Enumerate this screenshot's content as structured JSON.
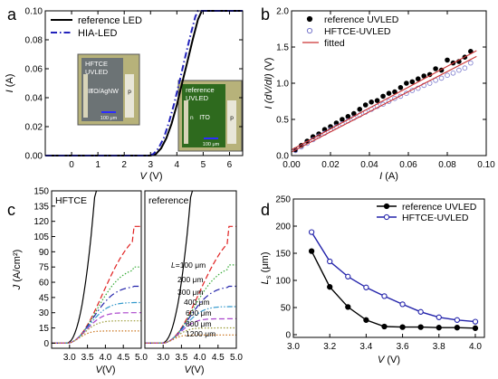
{
  "panel_labels": [
    "a",
    "b",
    "c",
    "d"
  ],
  "chart_data": [
    {
      "id": "a",
      "type": "line",
      "xlabel": "V",
      "xunit": " (V)",
      "ylabel": "I",
      "yunit": " (A)",
      "xlim": [
        -1,
        6.5
      ],
      "ylim": [
        0,
        0.1
      ],
      "xticks": [
        0,
        1,
        2,
        3,
        4,
        5,
        6
      ],
      "yticks": [
        0.0,
        0.02,
        0.04,
        0.06,
        0.08,
        0.1
      ],
      "series": [
        {
          "name": "reference LED",
          "color": "#000000",
          "style": "solid",
          "x": [
            -1,
            3.0,
            3.2,
            3.4,
            3.6,
            3.8,
            4.0,
            4.2,
            4.4,
            4.6,
            4.8,
            4.95,
            6.5
          ],
          "y": [
            0,
            0,
            0.001,
            0.005,
            0.012,
            0.022,
            0.035,
            0.05,
            0.065,
            0.08,
            0.094,
            0.1,
            0.1
          ]
        },
        {
          "name": "HIA-LED",
          "color": "#2222bb",
          "style": "dashdot",
          "x": [
            -1,
            2.9,
            3.1,
            3.3,
            3.5,
            3.7,
            3.9,
            4.1,
            4.3,
            4.5,
            4.7,
            4.8,
            6.5
          ],
          "y": [
            0,
            0,
            0.001,
            0.005,
            0.012,
            0.023,
            0.036,
            0.051,
            0.067,
            0.082,
            0.096,
            0.1,
            0.1
          ]
        }
      ],
      "insets": [
        {
          "title": [
            "HFTCE",
            "UVLED"
          ],
          "center": "ITO/AgNW",
          "left": "n",
          "right": "p",
          "scale": "100 μm",
          "color": "#6c7375"
        },
        {
          "title": [
            "reference",
            "UVLED"
          ],
          "center": "ITO",
          "left": "n",
          "right": "p",
          "scale": "100 μm",
          "color": "#2e6a1e"
        }
      ]
    },
    {
      "id": "b",
      "type": "scatter",
      "xlabel": "I",
      "xunit": " (A)",
      "ylabel": "I (dV/dI)",
      "yunit": " (V)",
      "xlim": [
        0,
        0.1
      ],
      "ylim": [
        0,
        2.0
      ],
      "xticks": [
        0.0,
        0.02,
        0.04,
        0.06,
        0.08,
        0.1
      ],
      "yticks": [
        0.0,
        0.5,
        1.0,
        1.5,
        2.0
      ],
      "series": [
        {
          "name": "reference UVLED",
          "marker": "filled-circle",
          "color": "#000000",
          "x": [
            0.002,
            0.005,
            0.008,
            0.011,
            0.014,
            0.017,
            0.02,
            0.023,
            0.026,
            0.029,
            0.032,
            0.035,
            0.038,
            0.041,
            0.044,
            0.047,
            0.05,
            0.053,
            0.056,
            0.059,
            0.062,
            0.065,
            0.068,
            0.071,
            0.074,
            0.077,
            0.08,
            0.083,
            0.086,
            0.089,
            0.092
          ],
          "y": [
            0.08,
            0.14,
            0.2,
            0.26,
            0.3,
            0.36,
            0.4,
            0.45,
            0.5,
            0.54,
            0.58,
            0.64,
            0.7,
            0.74,
            0.76,
            0.82,
            0.86,
            0.88,
            0.94,
            1.0,
            1.02,
            1.06,
            1.1,
            1.12,
            1.2,
            1.18,
            1.32,
            1.28,
            1.3,
            1.36,
            1.44
          ]
        },
        {
          "name": "HFTCE-UVLED",
          "marker": "open-circle",
          "color": "#7777cc",
          "x": [
            0.002,
            0.005,
            0.008,
            0.011,
            0.014,
            0.017,
            0.02,
            0.023,
            0.026,
            0.029,
            0.032,
            0.035,
            0.038,
            0.041,
            0.044,
            0.047,
            0.05,
            0.053,
            0.056,
            0.059,
            0.062,
            0.065,
            0.068,
            0.071,
            0.074,
            0.077,
            0.08,
            0.083,
            0.086,
            0.089,
            0.092
          ],
          "y": [
            0.07,
            0.12,
            0.17,
            0.22,
            0.27,
            0.31,
            0.36,
            0.4,
            0.44,
            0.48,
            0.52,
            0.56,
            0.6,
            0.64,
            0.68,
            0.71,
            0.75,
            0.79,
            0.82,
            0.86,
            0.9,
            0.93,
            0.97,
            1.0,
            1.04,
            1.07,
            1.11,
            1.14,
            1.18,
            1.21,
            1.28
          ]
        },
        {
          "name": "fitted",
          "color": "#cc3333",
          "style": "solid",
          "x": [
            0,
            0.095
          ],
          "y": [
            0.08,
            1.45
          ]
        },
        {
          "name": "",
          "color": "#cc3333",
          "style": "solid",
          "legend": false,
          "x": [
            0,
            0.095
          ],
          "y": [
            0.05,
            1.37
          ]
        }
      ]
    },
    {
      "id": "c",
      "type": "line",
      "ylabel": "J",
      "yunit": " (A/cm²)",
      "xlabel": "V",
      "xunit": "(V)",
      "ylim": [
        -5,
        150
      ],
      "yticks": [
        0,
        15,
        30,
        45,
        60,
        75,
        90,
        105,
        120,
        135,
        150
      ],
      "subpanels": [
        {
          "label": "HFTCE",
          "xlim": [
            2.5,
            5.0
          ],
          "xticks": [
            3.0,
            3.5,
            4.0,
            4.5,
            5.0
          ]
        },
        {
          "label": "reference",
          "xlim": [
            2.5,
            5.0
          ],
          "xticks": [
            3.0,
            3.5,
            4.0,
            4.5,
            5.0
          ]
        }
      ],
      "annotations": [
        "L=100 μm",
        "200 μm",
        "300 μm",
        "400 μm",
        "600 μm",
        "800 μm",
        "1200 μm"
      ],
      "series": [
        {
          "name": "",
          "color": "#000000",
          "style": "solid",
          "Jmax_hftce": 150,
          "Jmax_ref": 150,
          "sat": false,
          "k": 2.4
        },
        {
          "name": "100 μm",
          "color": "#e02020",
          "style": "dash",
          "Jmax_hftce": 115,
          "Jmax_ref": 115,
          "sat": true
        },
        {
          "name": "200 μm",
          "color": "#33aa33",
          "style": "dot",
          "Jmax_hftce": 75,
          "Jmax_ref": 77,
          "sat": true
        },
        {
          "name": "300 μm",
          "color": "#2222aa",
          "style": "dashdot",
          "Jmax_hftce": 56,
          "Jmax_ref": 56,
          "sat": true
        },
        {
          "name": "400 μm",
          "color": "#3399cc",
          "style": "dashdotdot",
          "Jmax_hftce": 40,
          "Jmax_ref": 36,
          "sat": true
        },
        {
          "name": "600 μm",
          "color": "#aa44cc",
          "style": "dash",
          "Jmax_hftce": 30,
          "Jmax_ref": 24,
          "sat": true
        },
        {
          "name": "800 μm",
          "color": "#999933",
          "style": "dot",
          "Jmax_hftce": 22,
          "Jmax_ref": 15,
          "sat": true
        },
        {
          "name": "1200 μm",
          "color": "#cc7722",
          "style": "dot",
          "Jmax_hftce": 12,
          "Jmax_ref": 8,
          "sat": true
        }
      ]
    },
    {
      "id": "d",
      "type": "line",
      "xlabel": "V",
      "xunit": " (V)",
      "ylabel": "L",
      "ysub": "s",
      "yunit": " (μm)",
      "xlim": [
        3.0,
        4.05
      ],
      "ylim": [
        -5,
        250
      ],
      "xticks": [
        3.0,
        3.2,
        3.4,
        3.6,
        3.8,
        4.0
      ],
      "yticks": [
        0,
        50,
        100,
        150,
        200,
        250
      ],
      "series": [
        {
          "name": "reference UVLED",
          "color": "#000000",
          "marker": "filled-circle",
          "x": [
            3.1,
            3.2,
            3.3,
            3.4,
            3.5,
            3.6,
            3.7,
            3.8,
            3.9,
            4.0
          ],
          "y": [
            154,
            88,
            51,
            27,
            15,
            14,
            14,
            13,
            13,
            12
          ]
        },
        {
          "name": "HFTCE-UVLED",
          "color": "#2222aa",
          "marker": "open-circle",
          "x": [
            3.1,
            3.2,
            3.3,
            3.4,
            3.5,
            3.6,
            3.7,
            3.8,
            3.9,
            4.0
          ],
          "y": [
            189,
            135,
            107,
            87,
            71,
            56,
            42,
            32,
            27,
            24
          ]
        }
      ]
    }
  ]
}
